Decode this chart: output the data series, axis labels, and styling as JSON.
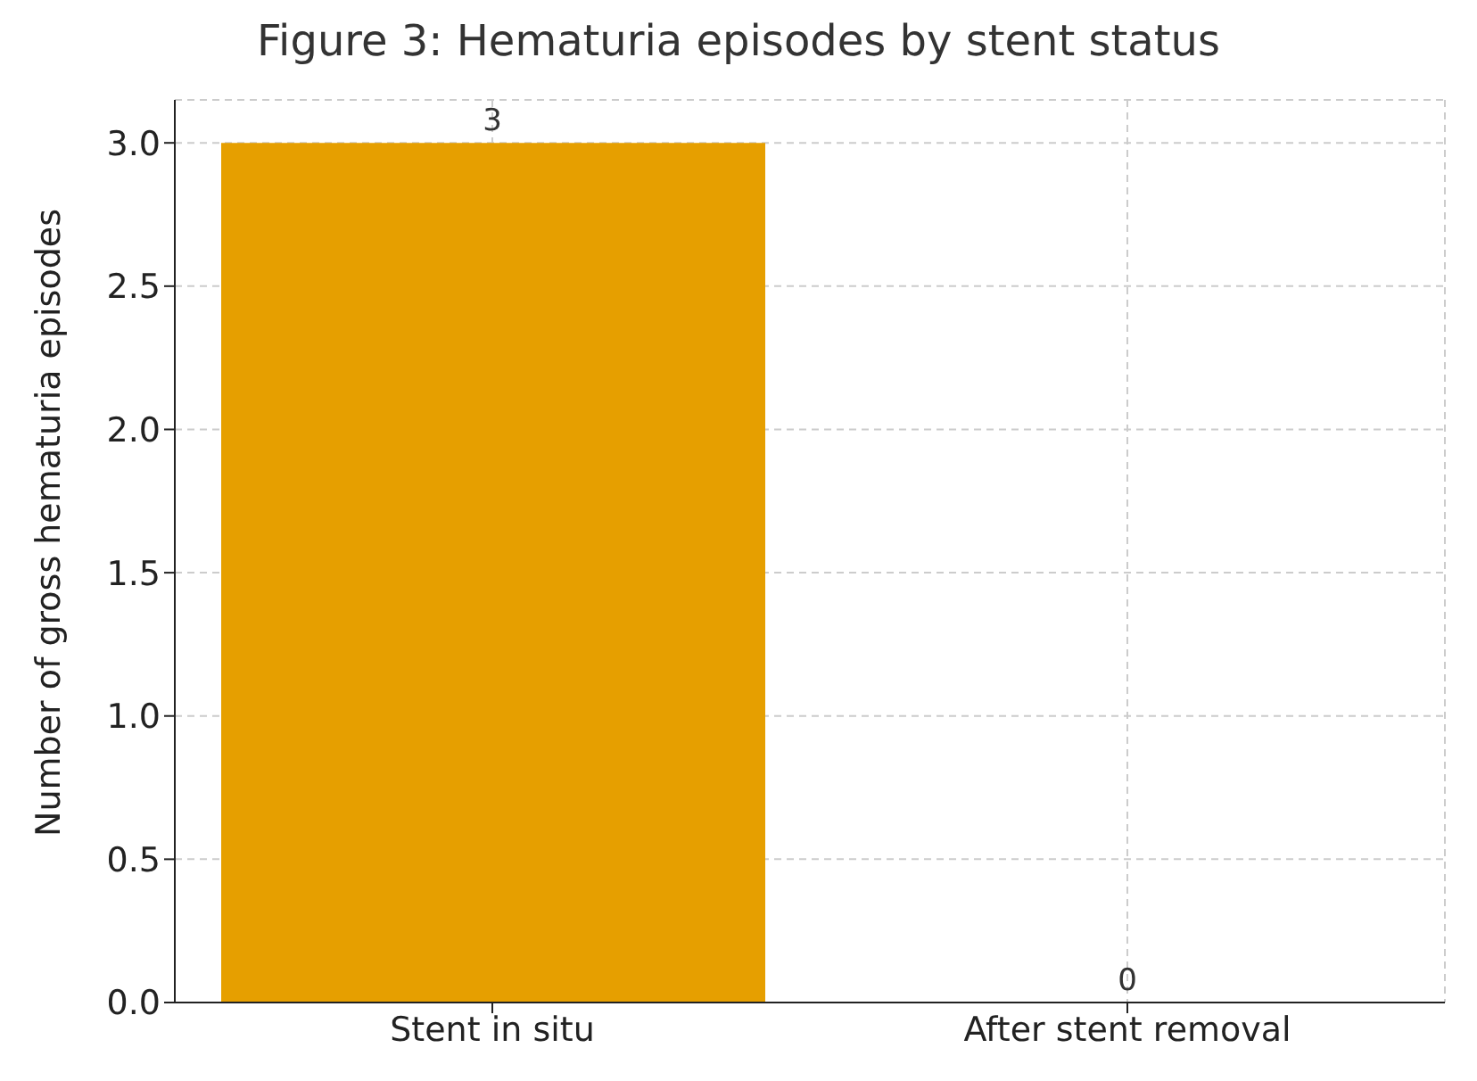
{
  "chart_data": {
    "type": "bar",
    "title": "Figure 3: Hematuria episodes by stent status",
    "ylabel": "Number of gross hematuria episodes",
    "categories": [
      "Stent in situ",
      "After stent removal"
    ],
    "values": [
      3,
      0
    ],
    "color": "#e69f00",
    "ylim": [
      0,
      3.15
    ],
    "yticks": [
      {
        "value": 0,
        "label": "0.0"
      },
      {
        "value": 0.5,
        "label": "0.5"
      },
      {
        "value": 1,
        "label": "1.0"
      },
      {
        "value": 1.5,
        "label": "1.5"
      },
      {
        "value": 2,
        "label": "2.0"
      },
      {
        "value": 2.5,
        "label": "2.5"
      },
      {
        "value": 3,
        "label": "3.0"
      }
    ],
    "grid": true,
    "data_labels": true
  }
}
